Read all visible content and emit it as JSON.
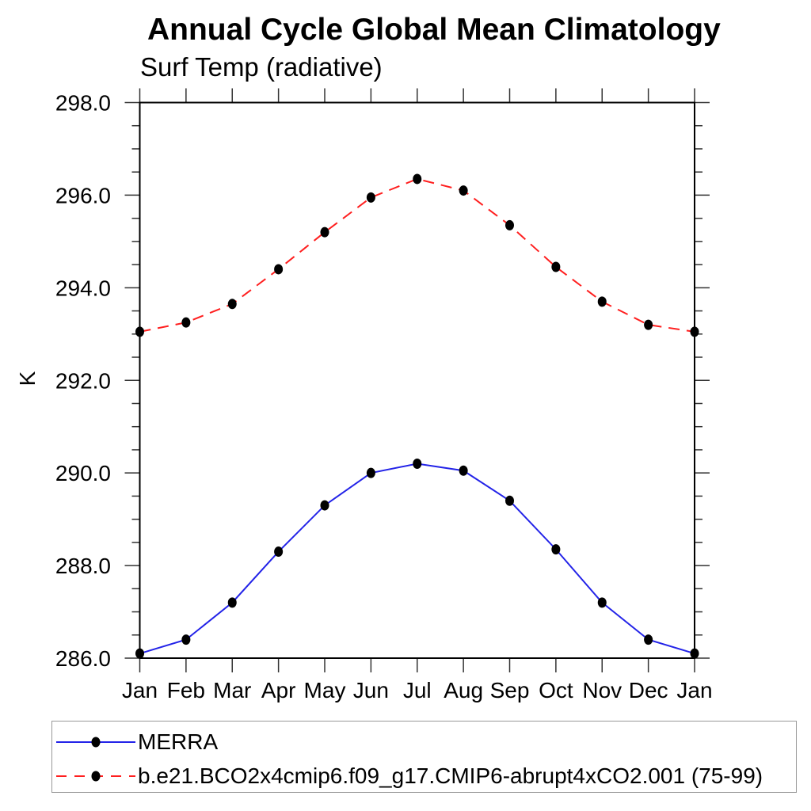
{
  "title": "Annual Cycle Global Mean Climatology",
  "subtitle": "Surf Temp (radiative)",
  "y_axis": {
    "label": "K",
    "tick_values": [
      286,
      288,
      290,
      292,
      294,
      296,
      298
    ],
    "tick_labels": [
      "286.0",
      "288.0",
      "290.0",
      "292.0",
      "294.0",
      "296.0",
      "298.0"
    ],
    "minor_step": 0.5
  },
  "x_axis": {
    "tick_labels": [
      "Jan",
      "Feb",
      "Mar",
      "Apr",
      "May",
      "Jun",
      "Jul",
      "Aug",
      "Sep",
      "Oct",
      "Nov",
      "Dec",
      "Jan"
    ]
  },
  "legend": {
    "items": [
      {
        "label": "MERRA"
      },
      {
        "label": "b.e21.BCO2x4cmip6.f09_g17.CMIP6-abrupt4xCO2.001 (75-99)"
      }
    ]
  },
  "chart_data": {
    "type": "line",
    "title": "Annual Cycle Global Mean Climatology",
    "subtitle": "Surf Temp (radiative)",
    "ylabel": "K",
    "ylim": [
      286,
      298
    ],
    "grid": false,
    "legend_position": "bottom-left-box",
    "categories": [
      "Jan",
      "Feb",
      "Mar",
      "Apr",
      "May",
      "Jun",
      "Jul",
      "Aug",
      "Sep",
      "Oct",
      "Nov",
      "Dec",
      "Jan"
    ],
    "series": [
      {
        "name": "MERRA",
        "color": "#2323e8",
        "dash": false,
        "marker": "filled-circle",
        "marker_color": "#000000",
        "values": [
          286.1,
          286.4,
          287.2,
          288.3,
          289.3,
          290.0,
          290.2,
          290.05,
          289.4,
          288.35,
          287.2,
          286.4,
          286.1
        ]
      },
      {
        "name": "b.e21.BCO2x4cmip6.f09_g17.CMIP6-abrupt4xCO2.001 (75-99)",
        "color": "#ff1f1f",
        "dash": true,
        "marker": "filled-circle",
        "marker_color": "#000000",
        "values": [
          293.05,
          293.25,
          293.65,
          294.4,
          295.2,
          295.95,
          296.35,
          296.1,
          295.35,
          294.45,
          293.7,
          293.2,
          293.05
        ]
      }
    ]
  }
}
